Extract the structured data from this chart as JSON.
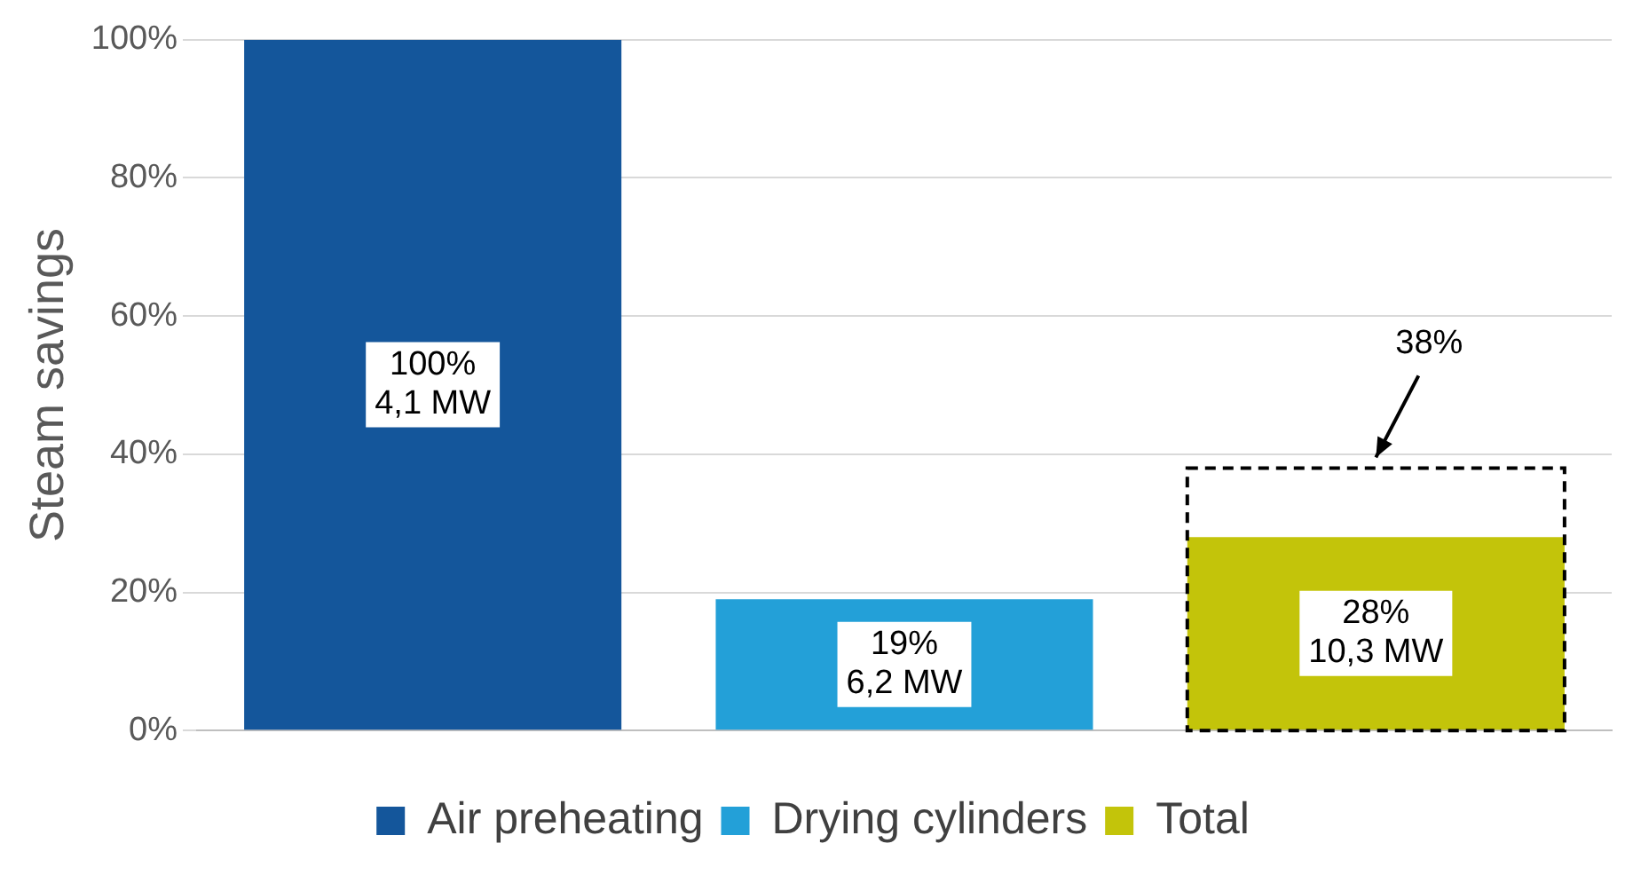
{
  "chart_data": {
    "type": "bar",
    "ylabel": "Steam savings",
    "categories": [
      null,
      null,
      null
    ],
    "series": [
      {
        "name": "Air preheating",
        "color": "#14569b",
        "values": [
          100,
          null,
          null
        ],
        "value_labels": [
          "100%\n4,1 MW",
          null,
          null
        ]
      },
      {
        "name": "Drying cylinders",
        "color": "#23a0d8",
        "values": [
          null,
          19,
          null
        ],
        "value_labels": [
          null,
          "19%\n6,2 MW",
          null
        ]
      },
      {
        "name": "Total",
        "color": "#c3c40a",
        "values": [
          null,
          null,
          28
        ],
        "value_labels": [
          null,
          null,
          "28%\n10,3 MW"
        ]
      },
      {
        "color": "#000000",
        "line_style": "dashed",
        "values": [
          null,
          null,
          38
        ],
        "value_labels": [
          null,
          null,
          "38%"
        ]
      }
    ],
    "ylim": [
      0,
      100
    ],
    "yticks": [
      {
        "value": 0,
        "label": "0%"
      },
      {
        "value": 20,
        "label": "20%"
      },
      {
        "value": 40,
        "label": "40%"
      },
      {
        "value": 60,
        "label": "60%"
      },
      {
        "value": 80,
        "label": "80%"
      },
      {
        "value": 100,
        "label": "100%"
      }
    ],
    "grid": "y",
    "legend": "bottom"
  }
}
